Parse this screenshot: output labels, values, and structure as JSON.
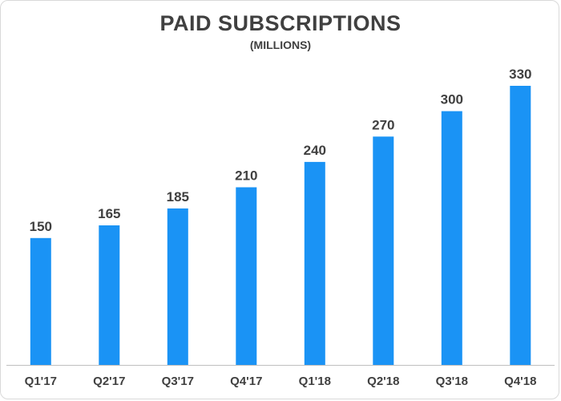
{
  "chart_data": {
    "type": "bar",
    "title": "PAID SUBSCRIPTIONS",
    "subtitle": "(MILLIONS)",
    "categories": [
      "Q1'17",
      "Q2'17",
      "Q3'17",
      "Q4'17",
      "Q1'18",
      "Q2'18",
      "Q3'18",
      "Q4'18"
    ],
    "values": [
      150,
      165,
      185,
      210,
      240,
      270,
      300,
      330
    ],
    "data_labels": [
      "150",
      "165",
      "185",
      "210",
      "240",
      "270",
      "300",
      "330"
    ],
    "xlabel": "",
    "ylabel": "",
    "ylim": [
      0,
      330
    ],
    "grid": false,
    "legend": "none",
    "bar_color": "#1a93f5",
    "text_color": "#404040",
    "axis_color": "#bfbfbf"
  }
}
